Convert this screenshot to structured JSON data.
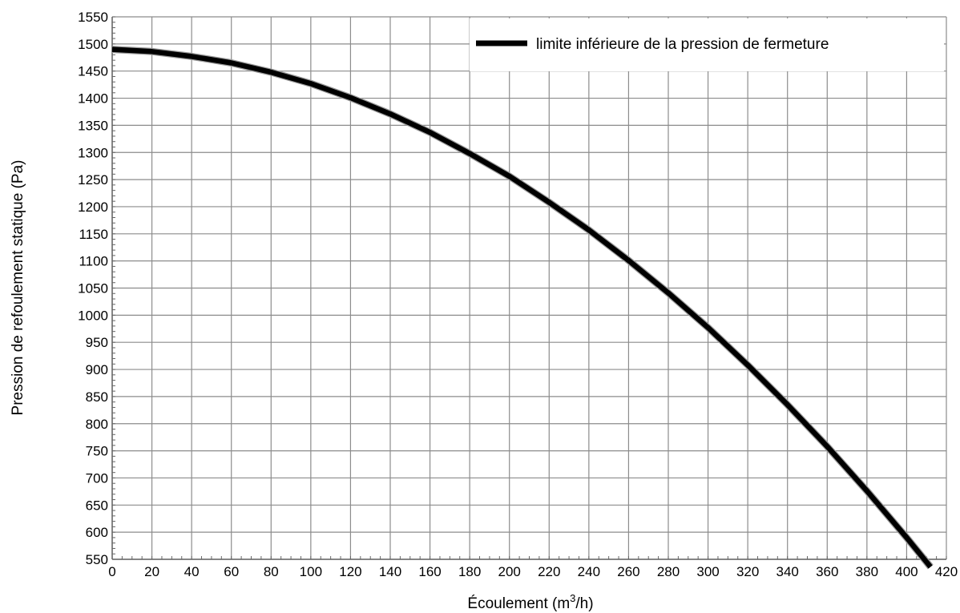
{
  "chart_data": {
    "type": "line",
    "xlabel": "Écoulement (m",
    "xlabel_sup": "3",
    "xlabel_end": "/h)",
    "ylabel": "Pression de refoulement statique (Pa)",
    "xlim": [
      0,
      420
    ],
    "ylim": [
      550,
      1550
    ],
    "x_ticks": [
      0,
      20,
      40,
      60,
      80,
      100,
      120,
      140,
      160,
      180,
      200,
      220,
      240,
      260,
      280,
      300,
      320,
      340,
      360,
      380,
      400,
      420
    ],
    "y_ticks": [
      550,
      600,
      650,
      700,
      750,
      800,
      850,
      900,
      950,
      1000,
      1050,
      1100,
      1150,
      1200,
      1250,
      1300,
      1350,
      1400,
      1450,
      1500,
      1550
    ],
    "grid": true,
    "legend_position": "top-right",
    "series": [
      {
        "name": "limite inférieure de la pression de fermeture",
        "color": "#000000",
        "x": [
          0,
          20,
          40,
          60,
          80,
          100,
          120,
          140,
          160,
          180,
          200,
          220,
          240,
          260,
          280,
          300,
          320,
          340,
          360,
          380,
          400,
          412
        ],
        "y": [
          1490,
          1486,
          1477,
          1465,
          1448,
          1427,
          1401,
          1371,
          1337,
          1298,
          1256,
          1208,
          1157,
          1101,
          1041,
          977,
          908,
          835,
          758,
          676,
          590,
          536
        ]
      }
    ]
  }
}
